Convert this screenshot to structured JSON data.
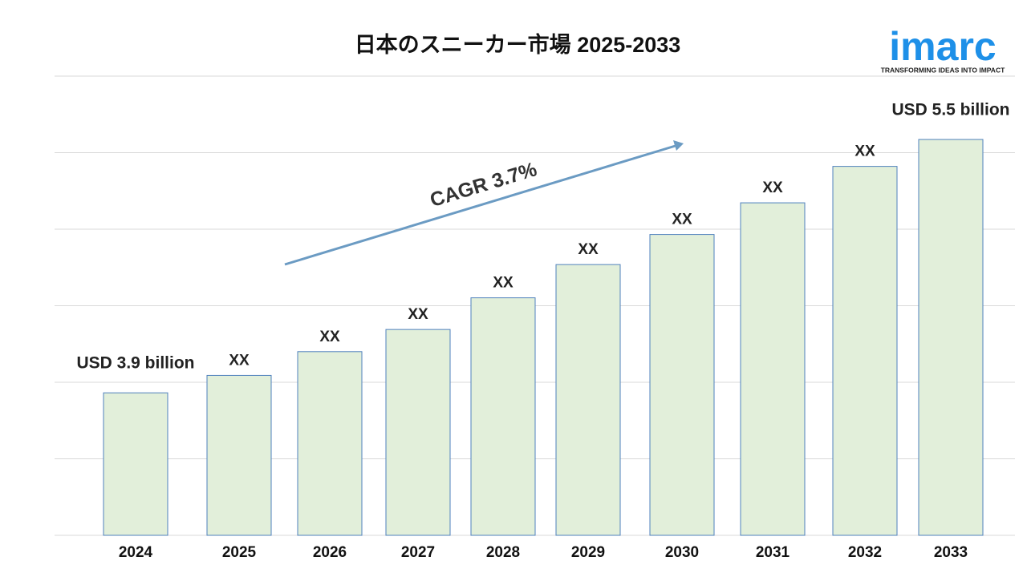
{
  "chart_data": {
    "type": "bar",
    "title": "日本のスニーカー市場 2025-2033",
    "categories": [
      "2024",
      "2025",
      "2026",
      "2027",
      "2028",
      "2029",
      "2030",
      "2031",
      "2032",
      "2033"
    ],
    "values": [
      3.9,
      4.01,
      4.16,
      4.3,
      4.5,
      4.71,
      4.9,
      5.1,
      5.33,
      5.5
    ],
    "value_labels": [
      "USD 3.9 billion",
      "XX",
      "XX",
      "XX",
      "XX",
      "XX",
      "XX",
      "XX",
      "XX",
      "USD 5.5 billion"
    ],
    "color": "#e2efda",
    "edge_color": "#4f81bd",
    "ylim": [
      3.0,
      5.9
    ],
    "grid": true,
    "annotation": "CAGR 3.7%"
  },
  "logo": {
    "name": "imarc",
    "tagline": "TRANSFORMING IDEAS INTO IMPACT"
  }
}
